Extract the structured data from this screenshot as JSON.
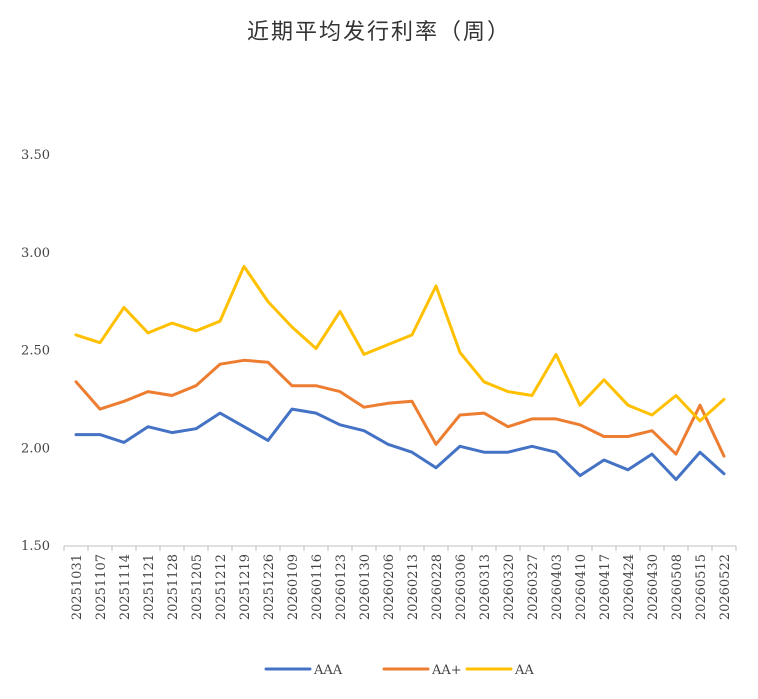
{
  "chart_data": {
    "type": "line",
    "title": "近期平均发行利率（周）",
    "xlabel": "",
    "ylabel": "",
    "ylim": [
      1.5,
      3.5
    ],
    "y_ticks": [
      "1.50",
      "2.00",
      "2.50",
      "3.00",
      "3.50"
    ],
    "grid": false,
    "legend_position": "bottom",
    "categories": [
      "20251031",
      "20251107",
      "20251114",
      "20251121",
      "20251128",
      "20251205",
      "20251212",
      "20251219",
      "20251226",
      "20260109",
      "20260116",
      "20260123",
      "20260130",
      "20260206",
      "20260213",
      "20260228",
      "20260306",
      "20260313",
      "20260320",
      "20260327",
      "20260403",
      "20260410",
      "20260417",
      "20260424",
      "20260430",
      "20260508",
      "20260515",
      "20260522"
    ],
    "series": [
      {
        "name": "AAA",
        "color": "#4472C4",
        "values": [
          2.07,
          2.07,
          2.03,
          2.11,
          2.08,
          2.1,
          2.18,
          2.11,
          2.04,
          2.2,
          2.18,
          2.12,
          2.09,
          2.02,
          1.98,
          1.9,
          2.01,
          1.98,
          1.98,
          2.01,
          1.98,
          1.86,
          1.94,
          1.89,
          1.97,
          1.84,
          1.98,
          1.87
        ]
      },
      {
        "name": "AA+",
        "color": "#ED7D31",
        "values": [
          2.34,
          2.2,
          2.24,
          2.29,
          2.27,
          2.32,
          2.43,
          2.45,
          2.44,
          2.32,
          2.32,
          2.29,
          2.21,
          2.23,
          2.24,
          2.02,
          2.17,
          2.18,
          2.11,
          2.15,
          2.15,
          2.12,
          2.06,
          2.06,
          2.09,
          1.97,
          2.22,
          1.96
        ]
      },
      {
        "name": "AA",
        "color": "#FFC000",
        "values": [
          2.58,
          2.54,
          2.72,
          2.59,
          2.64,
          2.6,
          2.65,
          2.93,
          2.75,
          2.62,
          2.51,
          2.7,
          2.48,
          2.53,
          2.58,
          2.83,
          2.49,
          2.34,
          2.29,
          2.27,
          2.48,
          2.22,
          2.35,
          2.22,
          2.17,
          2.27,
          2.14,
          2.25
        ]
      }
    ]
  }
}
